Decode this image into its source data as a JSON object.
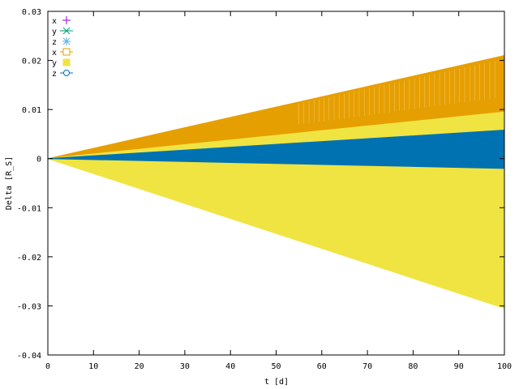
{
  "chart_data": {
    "type": "scatter",
    "xlabel": "t [d]",
    "ylabel": "Delta [R_S]",
    "xlim": [
      0,
      100
    ],
    "ylim": [
      -0.04,
      0.03
    ],
    "x_ticks": [
      "0",
      "10",
      "20",
      "30",
      "40",
      "50",
      "60",
      "70",
      "80",
      "90",
      "100"
    ],
    "y_ticks": [
      "0.03",
      "0.02",
      "0.01",
      "0",
      "-0.01",
      "-0.02",
      "-0.03",
      "-0.04"
    ],
    "grid": false,
    "legend_position": "top-left",
    "series": [
      {
        "name": "x",
        "marker": "plus",
        "color": "#9400d3",
        "envelope_at_t100": [
          0,
          0
        ]
      },
      {
        "name": "y",
        "marker": "x-cross",
        "color": "#009e73",
        "envelope_at_t100": [
          0,
          0
        ]
      },
      {
        "name": "z",
        "marker": "star",
        "color": "#56b4e9",
        "envelope_at_t100": [
          0,
          0
        ]
      },
      {
        "name": "x",
        "marker": "open-square",
        "color": "#e69f00",
        "envelope_at_t100": [
          0,
          0.021
        ]
      },
      {
        "name": "y",
        "marker": "filled-square",
        "color": "#f0e442",
        "envelope_at_t100": [
          -0.0305,
          0.0095
        ]
      },
      {
        "name": "z",
        "marker": "open-circle",
        "color": "#0072b2",
        "envelope_at_t100": [
          -0.002,
          0.0058
        ]
      }
    ]
  }
}
